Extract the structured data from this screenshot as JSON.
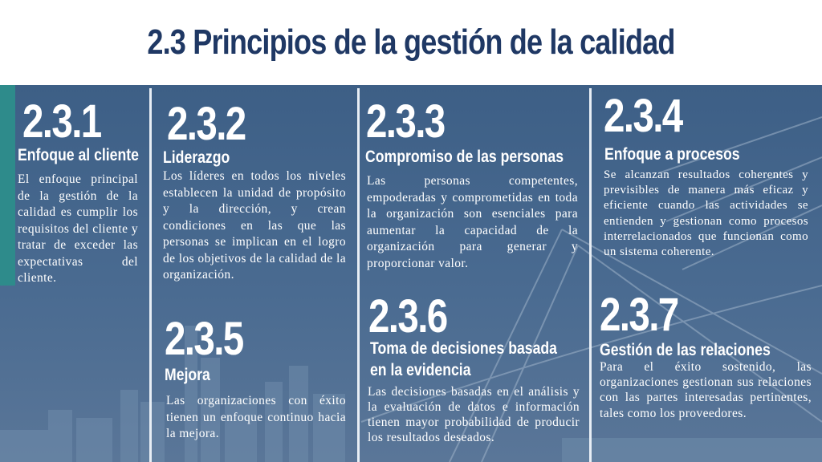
{
  "title": "2.3 Principios de la gestión de la calidad",
  "principles": [
    {
      "number": "2.3.1",
      "heading": "Enfoque al cliente",
      "text": "El enfoque principal de la gestión de la calidad es cumplir los requisitos del cliente y tratar de exceder las expectativas del cliente."
    },
    {
      "number": "2.3.2",
      "heading": "Liderazgo",
      "text": "Los líderes en todos los niveles establecen la unidad de propósito y la dirección, y crean condiciones en las que las personas se implican en el logro de los objetivos de la calidad de la organización."
    },
    {
      "number": "2.3.3",
      "heading": "Compromiso de las personas",
      "text": "Las personas competentes, empoderadas y comprometidas en toda la organización son esenciales para aumentar la capacidad de la organización para generar y proporcionar valor."
    },
    {
      "number": "2.3.4",
      "heading": "Enfoque a procesos",
      "text": "Se alcanzan resultados coherentes y previsibles de manera más eficaz y eficiente cuando las actividades se entienden y gestionan como procesos interrelacionados que funcionan como un sistema coherente."
    },
    {
      "number": "2.3.5",
      "heading": "Mejora",
      "text": "Las organizaciones con éxito tienen un enfoque continuo hacia la mejora."
    },
    {
      "number": "2.3.6",
      "heading": "Toma de decisiones basada",
      "heading2": "en la evidencia",
      "text": "Las decisiones basadas en el análisis y la evaluación de datos e información tienen mayor probabilidad de producir los resultados deseados."
    },
    {
      "number": "2.3.7",
      "heading": "Gestión de las relaciones",
      "text": "Para el éxito sostenido, las organizaciones gestionan sus relaciones con las partes interesadas pertinentes, tales como los proveedores."
    }
  ]
}
